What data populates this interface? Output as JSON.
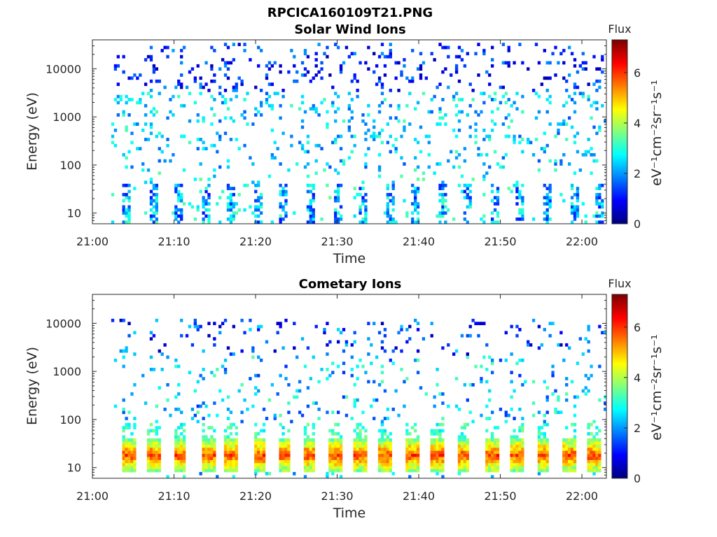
{
  "figure_title": "RPCICA160109T21.PNG",
  "chart_data": [
    {
      "type": "heatmap",
      "title": "Solar Wind Ions",
      "xlabel": "Time",
      "ylabel": "Energy (eV)",
      "x_ticks": [
        "21:00",
        "21:10",
        "21:20",
        "21:30",
        "21:40",
        "21:50",
        "22:00"
      ],
      "x_range_minutes": [
        0,
        63
      ],
      "y_scale": "log",
      "y_ticks": [
        "10",
        "100",
        "1000",
        "10000"
      ],
      "y_range": [
        6,
        40000
      ],
      "colorbar": {
        "label": "Flux",
        "units": "eV⁻¹cm⁻²sr⁻¹s⁻¹",
        "ticks": [
          "0",
          "2",
          "4",
          "6"
        ],
        "range": [
          0,
          7.3
        ],
        "colormap": "jet"
      },
      "data_start_minute": 2.3,
      "description_pattern": "sparse speckle at 100-30000 eV (flux ~2-3), bursty columns at 8-35 eV (flux ~1-3)"
    },
    {
      "type": "heatmap",
      "title": "Cometary Ions",
      "xlabel": "Time",
      "ylabel": "Energy (eV)",
      "x_ticks": [
        "21:00",
        "21:10",
        "21:20",
        "21:30",
        "21:40",
        "21:50",
        "22:00"
      ],
      "x_range_minutes": [
        0,
        63
      ],
      "y_scale": "log",
      "y_ticks": [
        "10",
        "100",
        "1000",
        "10000"
      ],
      "y_range": [
        6,
        40000
      ],
      "colorbar": {
        "label": "Flux",
        "units": "eV⁻¹cm⁻²sr⁻¹s⁻¹",
        "ticks": [
          "0",
          "2",
          "4",
          "6"
        ],
        "range": [
          0,
          7.3
        ],
        "colormap": "jet"
      },
      "data_start_minute": 2.3,
      "burst_minutes": [
        4.2,
        7.4,
        10.6,
        14.0,
        16.9,
        20.3,
        23.4,
        26.4,
        29.5,
        32.7,
        35.8,
        39.0,
        42.1,
        45.3,
        48.8,
        51.8,
        55.1,
        58.4,
        61.4
      ],
      "burst_energy_range": [
        8,
        40
      ],
      "burst_peak_flux": 6.5
    }
  ]
}
